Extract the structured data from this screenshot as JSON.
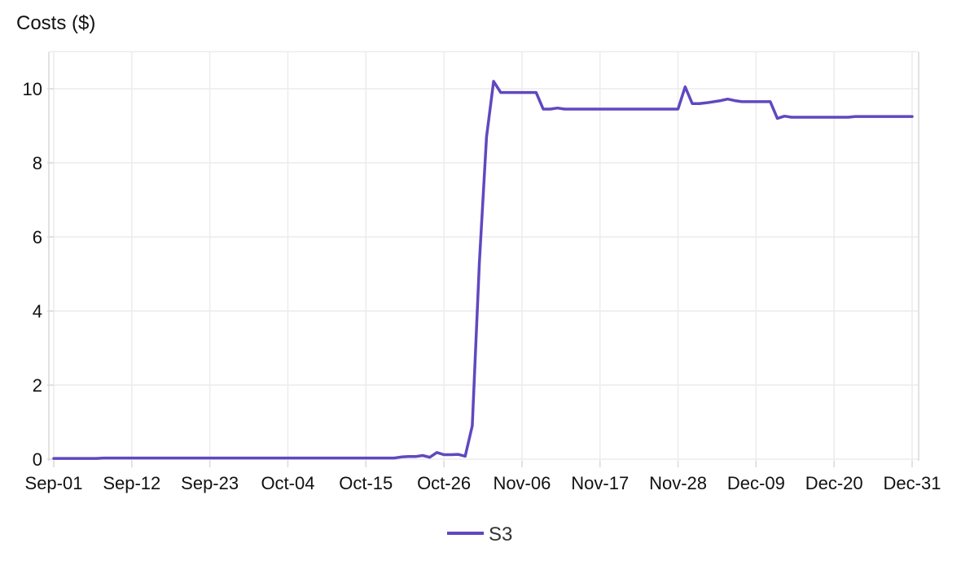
{
  "chart_data": {
    "type": "line",
    "title": "Costs ($)",
    "xlabel": "",
    "ylabel": "Costs ($)",
    "ylim": [
      0,
      11
    ],
    "yticks": [
      0,
      2,
      4,
      6,
      8,
      10
    ],
    "xlim_days": [
      0,
      121
    ],
    "x_tick_labels": [
      "Sep-01",
      "Sep-12",
      "Sep-23",
      "Oct-04",
      "Oct-15",
      "Oct-26",
      "Nov-06",
      "Nov-17",
      "Nov-28",
      "Dec-09",
      "Dec-20",
      "Dec-31"
    ],
    "x_tick_days": [
      0,
      11,
      22,
      33,
      44,
      55,
      66,
      77,
      88,
      99,
      110,
      121
    ],
    "grid": true,
    "legend_position": "bottom-center",
    "series": [
      {
        "name": "S3",
        "color": "#6048c0",
        "x_days": [
          0,
          6,
          7,
          48,
          49,
          50,
          51,
          52,
          53,
          54,
          55,
          56,
          57,
          58,
          59,
          60,
          61,
          62,
          63,
          64,
          68,
          69,
          70,
          71,
          72,
          73,
          74,
          88,
          89,
          90,
          91,
          92,
          94,
          95,
          96,
          97,
          98,
          101,
          102,
          103,
          104,
          112,
          113,
          121
        ],
        "values": [
          0.02,
          0.02,
          0.03,
          0.03,
          0.06,
          0.07,
          0.07,
          0.1,
          0.05,
          0.18,
          0.12,
          0.12,
          0.13,
          0.08,
          0.9,
          5.3,
          8.7,
          10.2,
          9.9,
          9.9,
          9.9,
          9.45,
          9.45,
          9.48,
          9.45,
          9.45,
          9.45,
          9.45,
          10.05,
          9.6,
          9.6,
          9.62,
          9.68,
          9.72,
          9.68,
          9.65,
          9.65,
          9.65,
          9.2,
          9.26,
          9.23,
          9.23,
          9.25,
          9.25
        ]
      }
    ]
  }
}
